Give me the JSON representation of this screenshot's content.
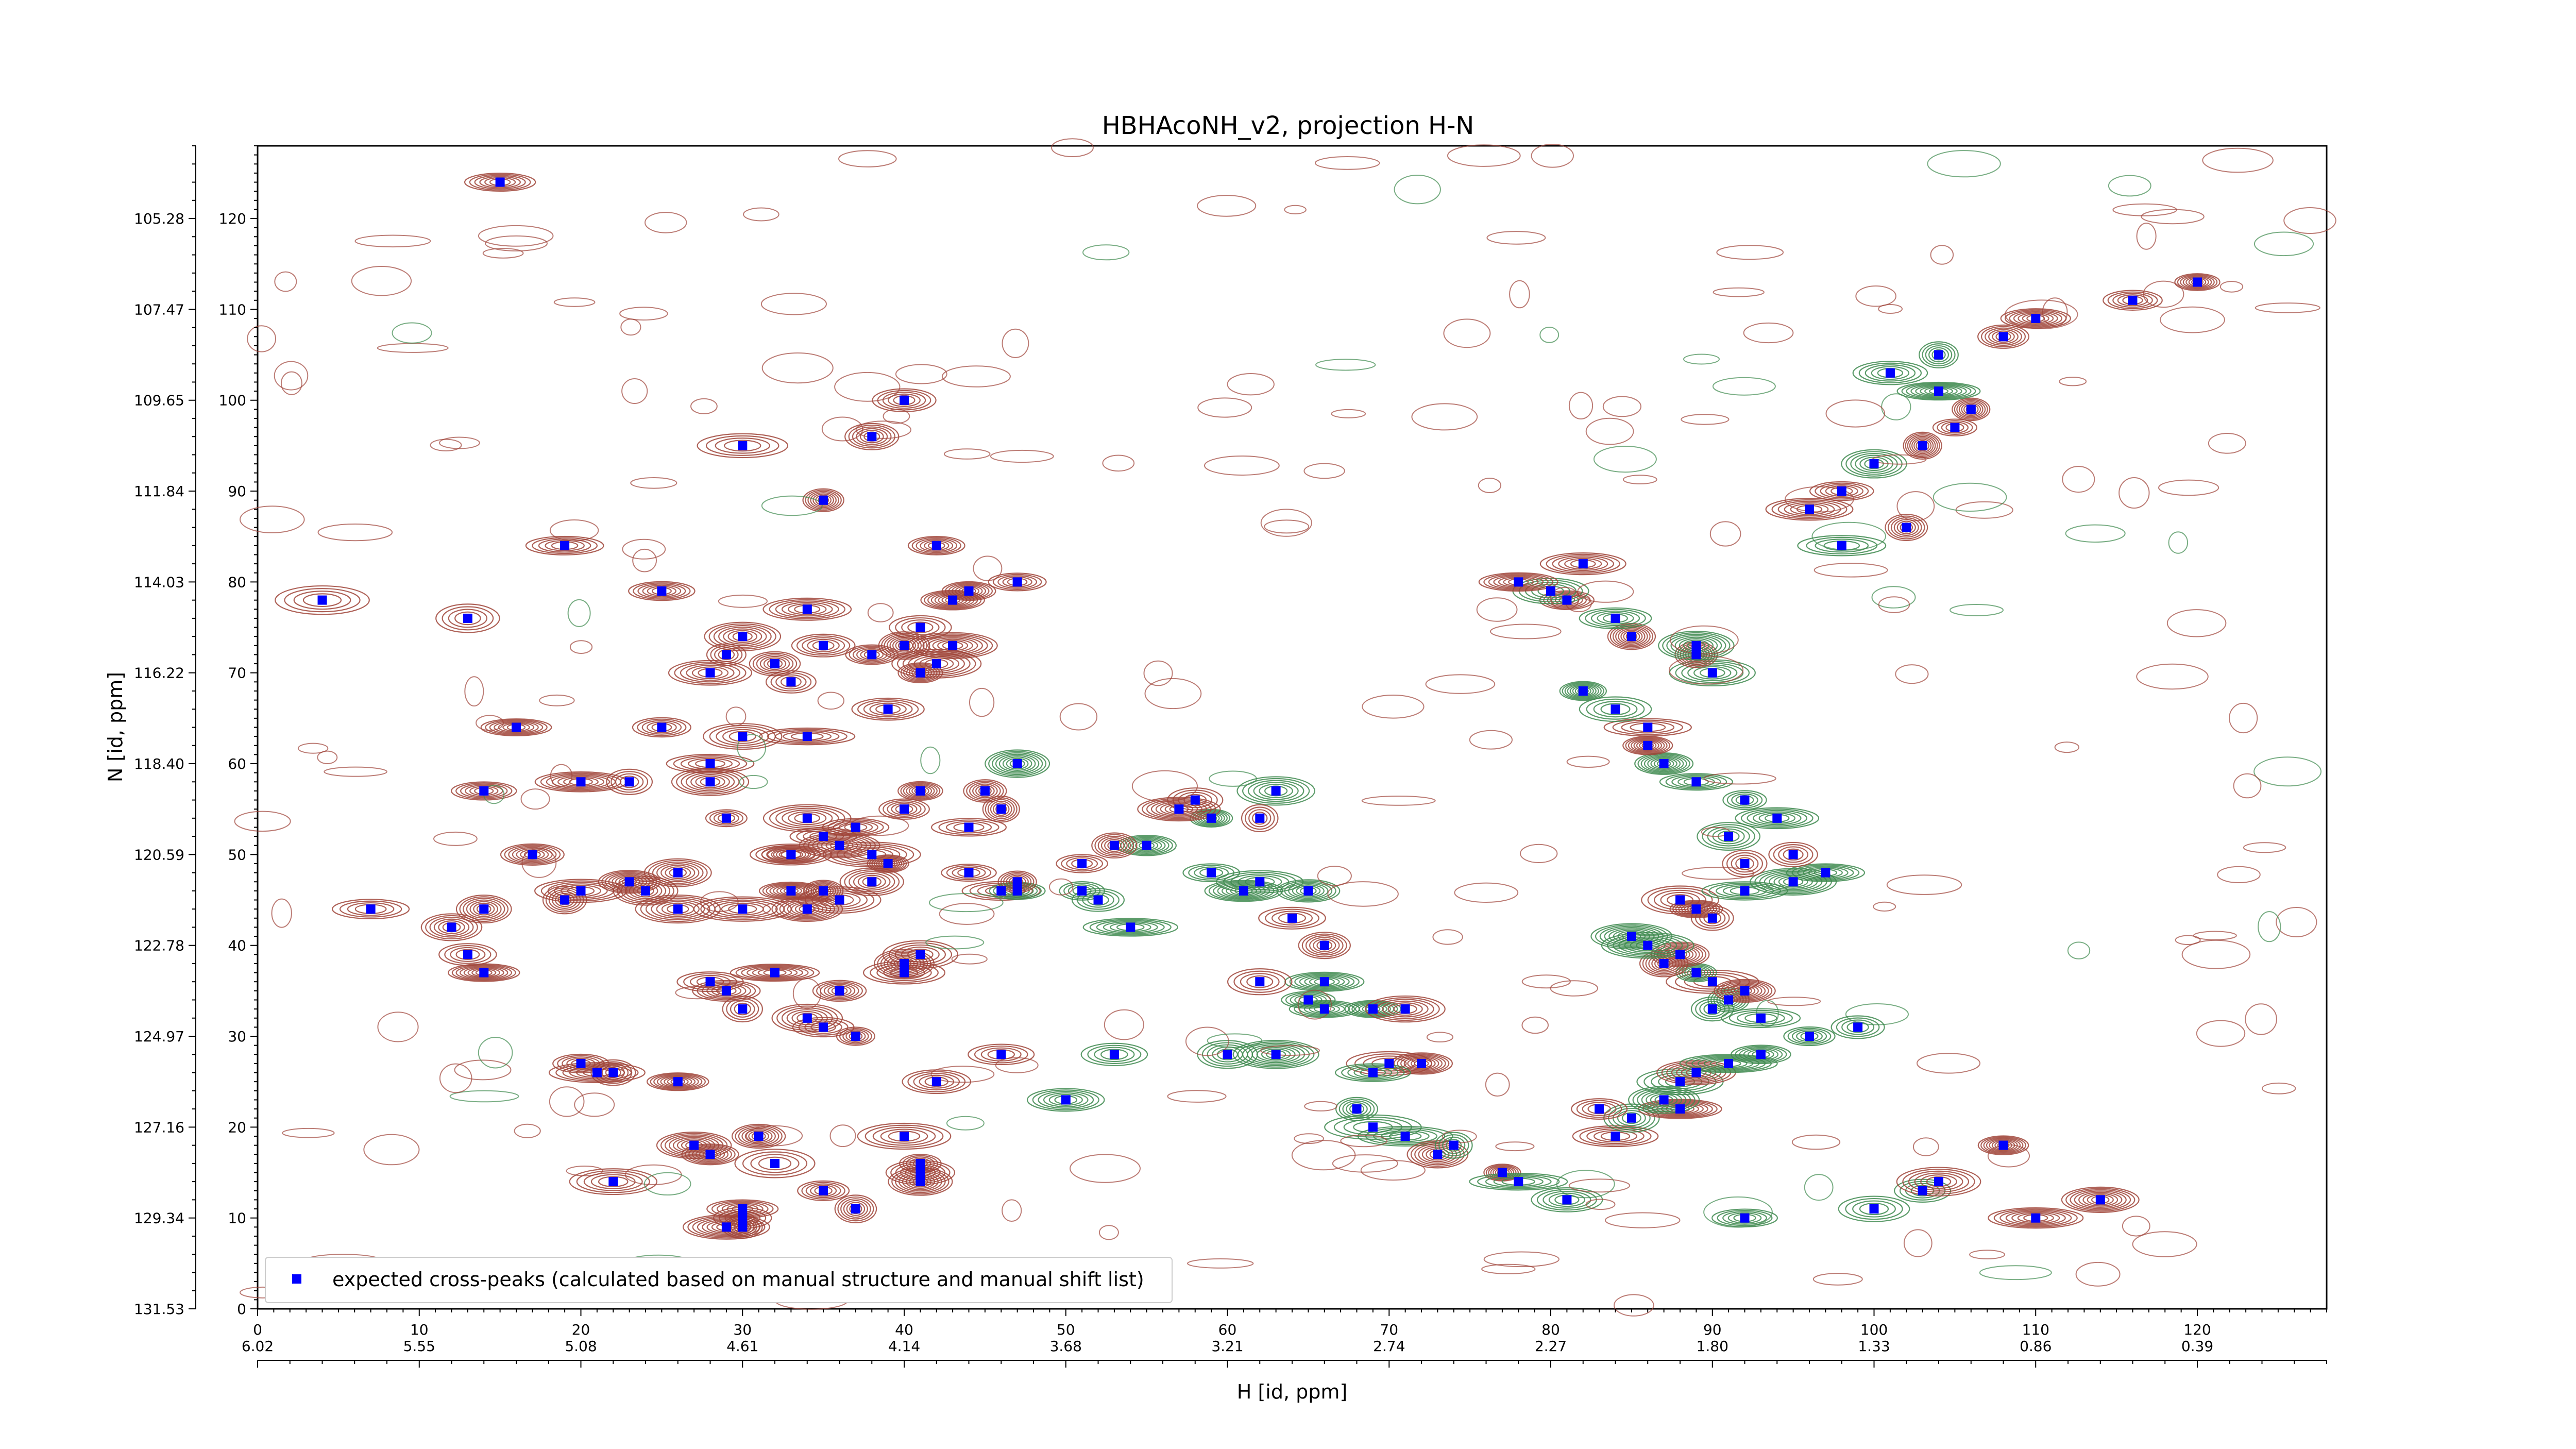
{
  "chart_data": {
    "type": "scatter",
    "title": "HBHAcoNH_v2, projection H-N",
    "xlabel": "H [id, ppm]",
    "ylabel": "N [id, ppm]",
    "xlim": [
      0,
      128
    ],
    "ylim": [
      0,
      128
    ],
    "grid": false,
    "legend_position": "lower-left",
    "colors": {
      "marker": "#0000ff",
      "contour_positive": "#a0453a",
      "contour_negative": "#3e8a4f",
      "axes": "#000000"
    },
    "x_index_ticks": [
      0,
      10,
      20,
      30,
      40,
      50,
      60,
      70,
      80,
      90,
      100,
      110,
      120
    ],
    "x_index_tick_labels": [
      "0",
      "10",
      "20",
      "30",
      "40",
      "50",
      "60",
      "70",
      "80",
      "90",
      "100",
      "110",
      "120"
    ],
    "x_ppm_tick_labels": [
      "6.02",
      "5.55",
      "5.08",
      "4.61",
      "4.14",
      "3.68",
      "3.21",
      "2.74",
      "2.27",
      "1.80",
      "1.33",
      "0.86",
      "0.39"
    ],
    "y_index_ticks": [
      0,
      10,
      20,
      30,
      40,
      50,
      60,
      70,
      80,
      90,
      100,
      110,
      120
    ],
    "y_index_tick_labels": [
      "0",
      "10",
      "20",
      "30",
      "40",
      "50",
      "60",
      "70",
      "80",
      "90",
      "100",
      "110",
      "120"
    ],
    "y_ppm_tick_labels": [
      "131.53",
      "129.34",
      "127.16",
      "124.97",
      "122.78",
      "120.59",
      "118.40",
      "116.22",
      "114.03",
      "111.84",
      "109.65",
      "107.47",
      "105.28"
    ],
    "series": [
      {
        "name": "expected cross-peaks (calculated based on manual structure and manual shift list)",
        "marker": "square",
        "color": "#0000ff",
        "x": [
          15,
          40,
          30,
          38,
          35,
          19,
          25,
          4,
          13,
          41,
          44,
          43,
          42,
          47,
          40,
          32,
          28,
          33,
          29,
          30,
          35,
          34,
          38,
          41,
          42,
          43,
          16,
          25,
          30,
          34,
          39,
          47,
          14,
          20,
          23,
          28,
          28,
          29,
          34,
          35,
          37,
          40,
          41,
          44,
          45,
          46,
          33,
          36,
          33,
          39,
          44,
          17,
          20,
          19,
          26,
          24,
          23,
          26,
          30,
          33,
          34,
          36,
          38,
          35,
          38,
          46,
          47,
          47,
          7,
          14,
          12,
          13,
          14,
          28,
          29,
          30,
          34,
          35,
          37,
          32,
          36,
          40,
          41,
          40,
          26,
          22,
          21,
          20,
          27,
          31,
          32,
          28,
          30,
          22,
          41,
          41,
          40,
          41,
          37,
          35,
          30,
          29,
          30,
          46,
          42,
          50,
          53,
          59,
          63,
          62,
          57,
          58,
          55,
          53,
          51,
          52,
          54,
          51,
          59,
          62,
          61,
          66,
          65,
          64,
          66,
          62,
          65,
          69,
          66,
          71,
          63,
          60,
          72,
          70,
          69,
          68,
          69,
          71,
          73,
          74,
          77,
          78,
          81,
          92,
          100,
          110,
          114,
          103,
          104,
          108,
          84,
          85,
          83,
          88,
          87,
          88,
          89,
          91,
          93,
          96,
          99,
          93,
          90,
          91,
          92,
          90,
          89,
          87,
          88,
          86,
          85,
          90,
          89,
          88,
          92,
          95,
          97,
          92,
          95,
          91,
          94,
          92,
          89,
          87,
          86,
          86,
          84,
          82,
          90,
          89,
          89,
          85,
          84,
          81,
          80,
          78,
          82,
          98,
          102,
          96,
          98,
          100,
          103,
          105,
          106,
          104,
          101,
          104,
          108,
          110,
          116,
          120
        ],
        "y": [
          124,
          100,
          95,
          96,
          89,
          84,
          79,
          78,
          76,
          75,
          79,
          78,
          84,
          80,
          73,
          71,
          70,
          69,
          72,
          74,
          73,
          77,
          72,
          70,
          71,
          73,
          64,
          64,
          63,
          63,
          66,
          60,
          57,
          58,
          58,
          58,
          60,
          54,
          54,
          52,
          53,
          55,
          57,
          53,
          57,
          55,
          50,
          51,
          50,
          49,
          48,
          50,
          46,
          45,
          48,
          46,
          47,
          44,
          44,
          46,
          44,
          45,
          47,
          46,
          50,
          46,
          46,
          47,
          44,
          44,
          42,
          39,
          37,
          36,
          35,
          33,
          32,
          31,
          30,
          37,
          35,
          37,
          39,
          38,
          25,
          26,
          26,
          27,
          18,
          19,
          16,
          17,
          11,
          14,
          15,
          16,
          19,
          14,
          11,
          13,
          10,
          9,
          9,
          28,
          25,
          23,
          28,
          54,
          57,
          54,
          55,
          56,
          51,
          51,
          49,
          45,
          42,
          46,
          48,
          47,
          46,
          40,
          46,
          43,
          36,
          36,
          34,
          33,
          33,
          33,
          28,
          28,
          27,
          27,
          26,
          22,
          20,
          19,
          17,
          18,
          15,
          14,
          12,
          10,
          11,
          10,
          12,
          13,
          14,
          18,
          19,
          21,
          22,
          22,
          23,
          25,
          26,
          27,
          28,
          30,
          31,
          32,
          33,
          34,
          35,
          36,
          37,
          38,
          39,
          40,
          41,
          43,
          44,
          45,
          46,
          47,
          48,
          49,
          50,
          52,
          54,
          56,
          58,
          60,
          62,
          64,
          66,
          68,
          70,
          72,
          73,
          74,
          76,
          78,
          79,
          80,
          82,
          84,
          86,
          88,
          90,
          93,
          95,
          97,
          99,
          101,
          103,
          105,
          107,
          109,
          111,
          113
        ]
      }
    ],
    "legend_entries": [
      "expected cross-peaks (calculated based on manual structure and manual shift list)"
    ]
  }
}
